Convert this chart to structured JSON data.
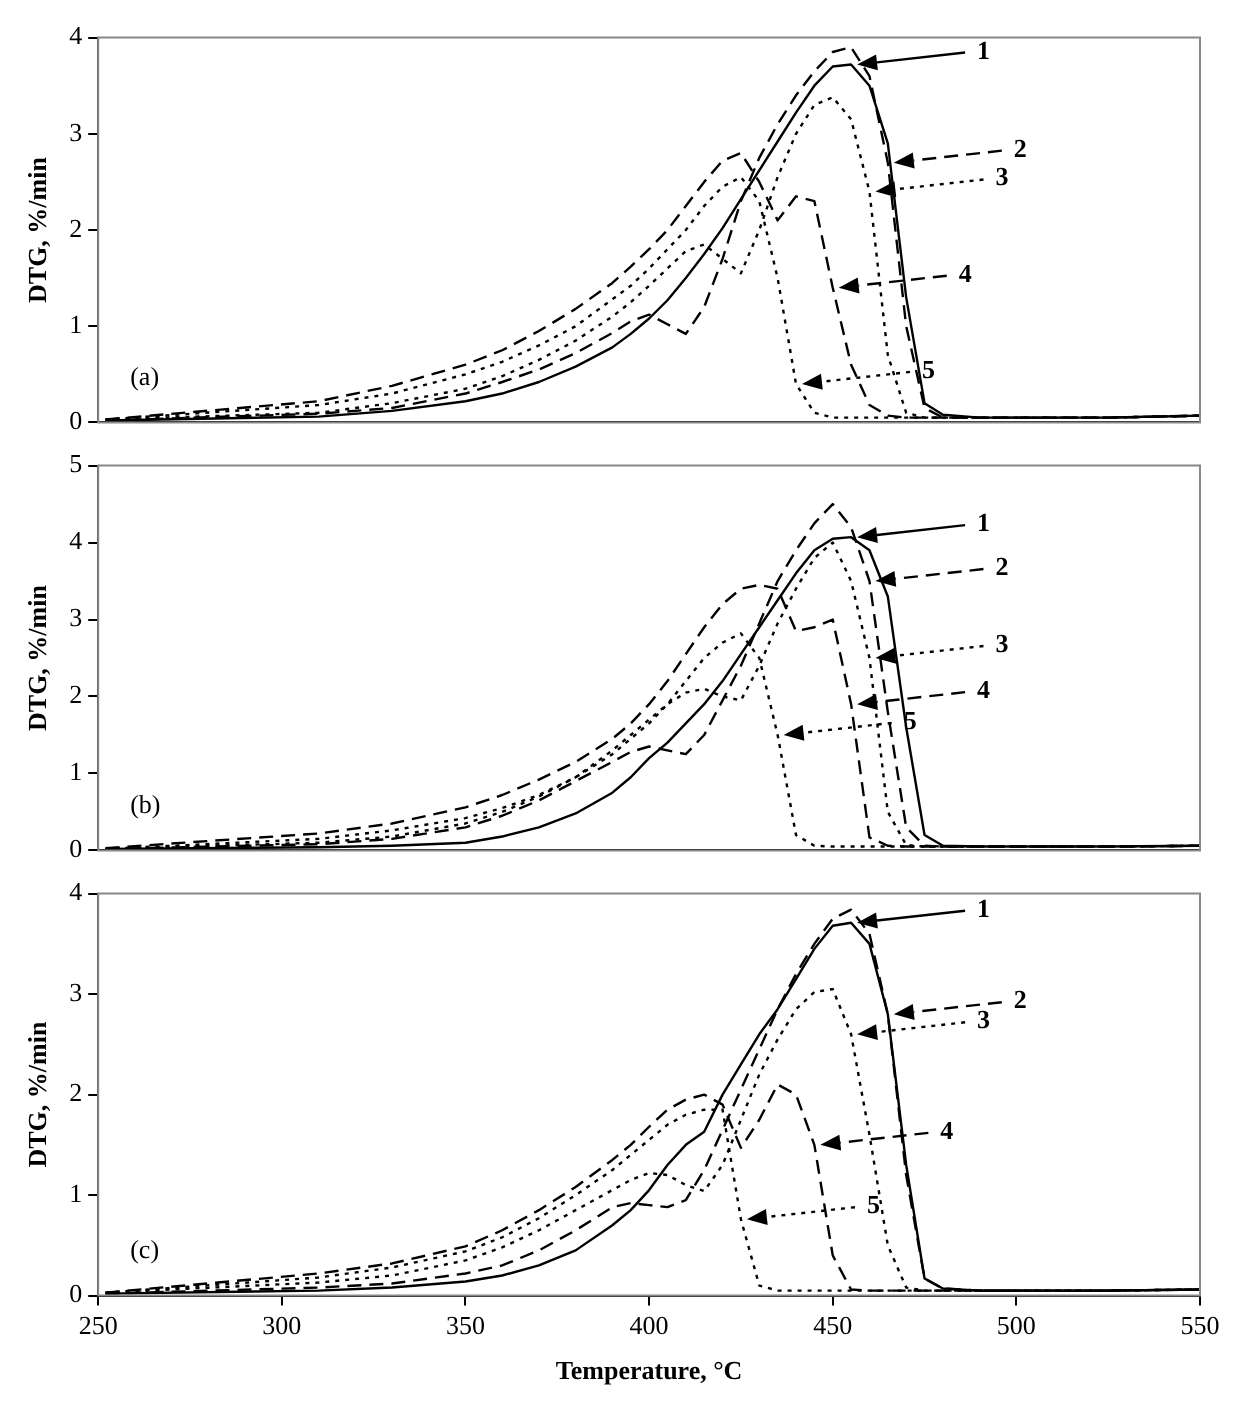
{
  "chart_data": [
    {
      "type": "line",
      "legend": "right",
      "ylabel": "DTG, %/min",
      "annotations": [
        "(a)"
      ],
      "tick_labels": "y",
      "xlim": [
        250,
        550
      ],
      "xticks": [
        250,
        300,
        350,
        400,
        450,
        500,
        550
      ],
      "ylim": [
        0,
        4
      ],
      "yticks": [
        0,
        1,
        2,
        3,
        4
      ],
      "x": [
        252,
        310,
        330,
        350,
        360,
        370,
        380,
        390,
        395,
        400,
        405,
        410,
        415,
        420,
        425,
        430,
        435,
        440,
        445,
        450,
        455,
        460,
        465,
        470,
        475,
        480,
        490,
        500,
        525,
        550
      ],
      "series": [
        {
          "name": "1",
          "color": "#000000",
          "line_style": "solid",
          "values": [
            0.02,
            0.06,
            0.12,
            0.22,
            0.3,
            0.42,
            0.58,
            0.78,
            0.92,
            1.08,
            1.27,
            1.5,
            1.75,
            2.02,
            2.32,
            2.62,
            2.92,
            3.22,
            3.5,
            3.7,
            3.72,
            3.5,
            2.9,
            1.3,
            0.2,
            0.08,
            0.05,
            0.05,
            0.05,
            0.07
          ]
        },
        {
          "name": "2",
          "color": "#000000",
          "line_style": "dashed",
          "values": [
            0.02,
            0.09,
            0.15,
            0.3,
            0.42,
            0.55,
            0.72,
            0.93,
            1.05,
            1.12,
            1.02,
            0.92,
            1.2,
            1.7,
            2.3,
            2.75,
            3.1,
            3.4,
            3.65,
            3.85,
            3.9,
            3.6,
            2.7,
            1.0,
            0.15,
            0.05,
            0.05,
            0.05,
            0.05,
            0.07
          ]
        },
        {
          "name": "3",
          "color": "#000000",
          "line_style": "dotted",
          "values": [
            0.03,
            0.1,
            0.2,
            0.35,
            0.48,
            0.65,
            0.85,
            1.1,
            1.25,
            1.42,
            1.6,
            1.78,
            1.85,
            1.7,
            1.55,
            2.0,
            2.55,
            3.0,
            3.3,
            3.38,
            3.15,
            2.4,
            0.7,
            0.1,
            0.05,
            0.05,
            0.05,
            0.05,
            0.05,
            0.07
          ]
        },
        {
          "name": "4",
          "color": "#000000",
          "line_style": "dashed",
          "values": [
            0.03,
            0.22,
            0.38,
            0.6,
            0.75,
            0.95,
            1.18,
            1.45,
            1.62,
            1.8,
            2.0,
            2.25,
            2.5,
            2.72,
            2.8,
            2.5,
            2.1,
            2.35,
            2.3,
            1.4,
            0.6,
            0.18,
            0.07,
            0.05,
            0.05,
            0.05,
            0.05,
            0.05,
            0.05,
            0.07
          ]
        },
        {
          "name": "5",
          "color": "#000000",
          "line_style": "dotted",
          "values": [
            0.03,
            0.18,
            0.3,
            0.5,
            0.63,
            0.8,
            1.0,
            1.28,
            1.42,
            1.6,
            1.8,
            2.0,
            2.25,
            2.45,
            2.55,
            2.3,
            1.5,
            0.4,
            0.1,
            0.05,
            0.05,
            0.05,
            0.05,
            0.05,
            0.05,
            0.05,
            0.05,
            0.05,
            0.05,
            0.07
          ]
        }
      ]
    },
    {
      "type": "line",
      "legend": "right",
      "ylabel": "DTG, %/min",
      "annotations": [
        "(b)"
      ],
      "tick_labels": "y",
      "xlim": [
        250,
        550
      ],
      "xticks": [
        250,
        300,
        350,
        400,
        450,
        500,
        550
      ],
      "ylim": [
        0,
        5
      ],
      "yticks": [
        0,
        1,
        2,
        3,
        4,
        5
      ],
      "x": [
        252,
        310,
        330,
        350,
        360,
        370,
        380,
        390,
        395,
        400,
        405,
        410,
        415,
        420,
        425,
        430,
        435,
        440,
        445,
        450,
        455,
        460,
        465,
        470,
        475,
        480,
        490,
        500,
        525,
        550
      ],
      "series": [
        {
          "name": "1",
          "color": "#000000",
          "line_style": "solid",
          "values": [
            0.02,
            0.04,
            0.06,
            0.1,
            0.18,
            0.3,
            0.48,
            0.75,
            0.95,
            1.2,
            1.4,
            1.65,
            1.9,
            2.2,
            2.55,
            2.9,
            3.25,
            3.6,
            3.9,
            4.05,
            4.07,
            3.9,
            3.3,
            1.6,
            0.2,
            0.06,
            0.05,
            0.05,
            0.05,
            0.06
          ]
        },
        {
          "name": "2",
          "color": "#000000",
          "line_style": "dashed",
          "values": [
            0.02,
            0.08,
            0.15,
            0.3,
            0.45,
            0.65,
            0.9,
            1.15,
            1.28,
            1.35,
            1.3,
            1.25,
            1.5,
            1.95,
            2.4,
            2.95,
            3.5,
            3.9,
            4.25,
            4.5,
            4.2,
            3.5,
            1.8,
            0.3,
            0.06,
            0.05,
            0.05,
            0.05,
            0.05,
            0.06
          ]
        },
        {
          "name": "3",
          "color": "#000000",
          "line_style": "dotted",
          "values": [
            0.02,
            0.1,
            0.18,
            0.35,
            0.5,
            0.7,
            0.95,
            1.3,
            1.5,
            1.7,
            1.9,
            2.05,
            2.1,
            2.0,
            1.95,
            2.4,
            2.95,
            3.4,
            3.8,
            4.0,
            3.5,
            2.5,
            0.5,
            0.07,
            0.05,
            0.05,
            0.05,
            0.05,
            0.05,
            0.06
          ]
        },
        {
          "name": "4",
          "color": "#000000",
          "line_style": "dashed",
          "values": [
            0.03,
            0.22,
            0.35,
            0.56,
            0.72,
            0.92,
            1.15,
            1.45,
            1.65,
            1.9,
            2.2,
            2.55,
            2.9,
            3.2,
            3.4,
            3.45,
            3.4,
            2.85,
            2.9,
            3.0,
            1.9,
            0.17,
            0.06,
            0.05,
            0.05,
            0.05,
            0.05,
            0.05,
            0.05,
            0.06
          ]
        },
        {
          "name": "5",
          "color": "#000000",
          "line_style": "dotted",
          "values": [
            0.02,
            0.15,
            0.26,
            0.42,
            0.55,
            0.72,
            0.95,
            1.25,
            1.45,
            1.65,
            1.9,
            2.2,
            2.5,
            2.7,
            2.82,
            2.5,
            1.5,
            0.2,
            0.06,
            0.05,
            0.05,
            0.05,
            0.05,
            0.05,
            0.05,
            0.05,
            0.05,
            0.05,
            0.05,
            0.06
          ]
        }
      ]
    },
    {
      "type": "line",
      "legend": "right",
      "ylabel": "DTG, %/min",
      "xlabel": "Temperature, °C",
      "annotations": [
        "(c)"
      ],
      "xlim": [
        250,
        550
      ],
      "xticks": [
        250,
        300,
        350,
        400,
        450,
        500,
        550
      ],
      "ylim": [
        0,
        4
      ],
      "yticks": [
        0,
        1,
        2,
        3,
        4
      ],
      "x": [
        252,
        310,
        330,
        350,
        360,
        370,
        380,
        390,
        395,
        400,
        405,
        410,
        415,
        420,
        425,
        430,
        435,
        440,
        445,
        450,
        455,
        460,
        465,
        470,
        475,
        480,
        490,
        500,
        525,
        550
      ],
      "series": [
        {
          "name": "1",
          "color": "#000000",
          "line_style": "solid",
          "values": [
            0.02,
            0.05,
            0.08,
            0.14,
            0.2,
            0.3,
            0.45,
            0.7,
            0.85,
            1.05,
            1.3,
            1.5,
            1.63,
            2.0,
            2.3,
            2.6,
            2.85,
            3.15,
            3.45,
            3.68,
            3.71,
            3.5,
            2.8,
            1.3,
            0.17,
            0.07,
            0.05,
            0.05,
            0.05,
            0.06
          ]
        },
        {
          "name": "2",
          "color": "#000000",
          "line_style": "dashed",
          "values": [
            0.02,
            0.08,
            0.12,
            0.22,
            0.3,
            0.45,
            0.65,
            0.88,
            0.92,
            0.9,
            0.88,
            0.95,
            1.25,
            1.65,
            2.05,
            2.45,
            2.85,
            3.2,
            3.5,
            3.75,
            3.84,
            3.6,
            2.8,
            1.2,
            0.17,
            0.07,
            0.05,
            0.05,
            0.05,
            0.06
          ]
        },
        {
          "name": "3",
          "color": "#000000",
          "line_style": "dotted",
          "values": [
            0.03,
            0.13,
            0.2,
            0.35,
            0.48,
            0.65,
            0.85,
            1.05,
            1.15,
            1.22,
            1.2,
            1.1,
            1.04,
            1.3,
            1.75,
            2.2,
            2.55,
            2.85,
            3.02,
            3.05,
            2.6,
            1.6,
            0.5,
            0.08,
            0.05,
            0.05,
            0.05,
            0.05,
            0.05,
            0.06
          ]
        },
        {
          "name": "4",
          "color": "#000000",
          "line_style": "dashed",
          "values": [
            0.03,
            0.22,
            0.32,
            0.49,
            0.65,
            0.85,
            1.08,
            1.35,
            1.5,
            1.68,
            1.85,
            1.95,
            2.0,
            1.9,
            1.47,
            1.75,
            2.1,
            2.0,
            1.5,
            0.4,
            0.06,
            0.05,
            0.05,
            0.05,
            0.05,
            0.05,
            0.05,
            0.05,
            0.05,
            0.06
          ]
        },
        {
          "name": "5",
          "color": "#000000",
          "line_style": "dotted",
          "values": [
            0.03,
            0.18,
            0.28,
            0.44,
            0.58,
            0.77,
            1.0,
            1.25,
            1.4,
            1.55,
            1.7,
            1.8,
            1.85,
            1.85,
            0.76,
            0.1,
            0.05,
            0.05,
            0.05,
            0.05,
            0.05,
            0.05,
            0.05,
            0.05,
            0.05,
            0.05,
            0.05,
            0.05,
            0.05,
            0.06
          ]
        }
      ]
    }
  ]
}
